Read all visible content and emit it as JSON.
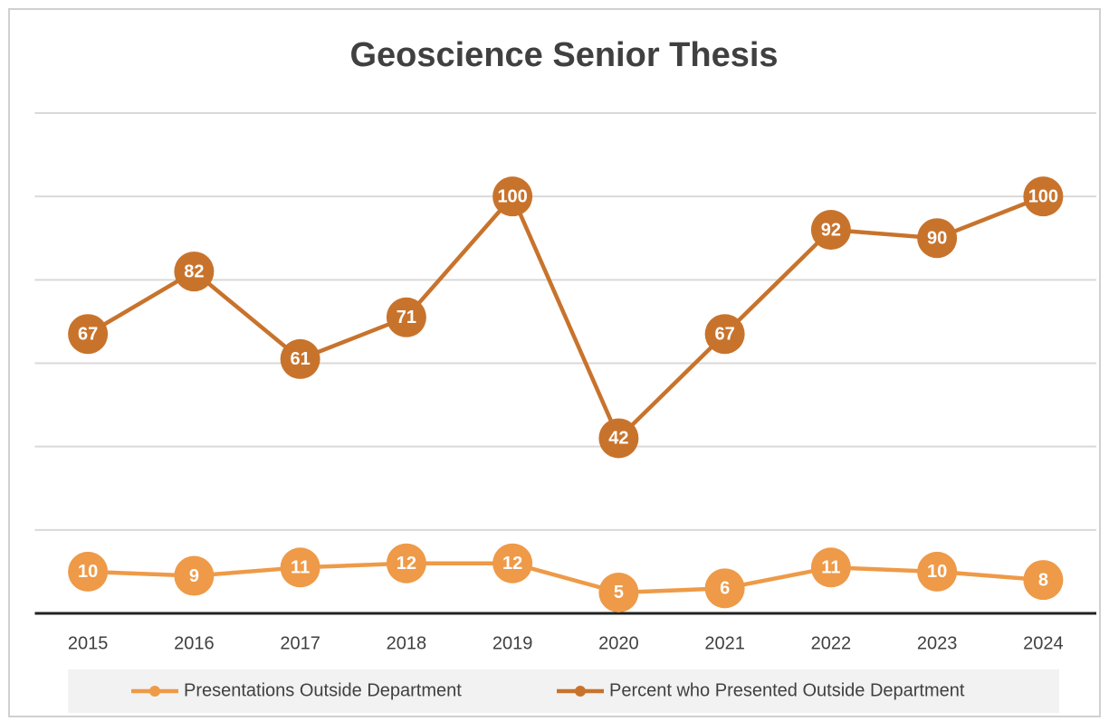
{
  "chart_data": {
    "type": "line",
    "title": "Geoscience Senior Thesis",
    "categories": [
      "2015",
      "2016",
      "2017",
      "2018",
      "2019",
      "2020",
      "2021",
      "2022",
      "2023",
      "2024"
    ],
    "series": [
      {
        "name": "Presentations Outside Department",
        "color": "#ee9a48",
        "values": [
          10,
          9,
          11,
          12,
          12,
          5,
          6,
          11,
          10,
          8
        ]
      },
      {
        "name": "Percent who Presented Outside Department",
        "color": "#c8732c",
        "values": [
          67,
          82,
          61,
          71,
          100,
          42,
          67,
          92,
          90,
          100
        ]
      }
    ],
    "ylim": [
      0,
      120
    ],
    "yticks": [
      0,
      20,
      40,
      60,
      80,
      100,
      120
    ],
    "grid": true,
    "legend": "bottom",
    "data_labels": true
  }
}
